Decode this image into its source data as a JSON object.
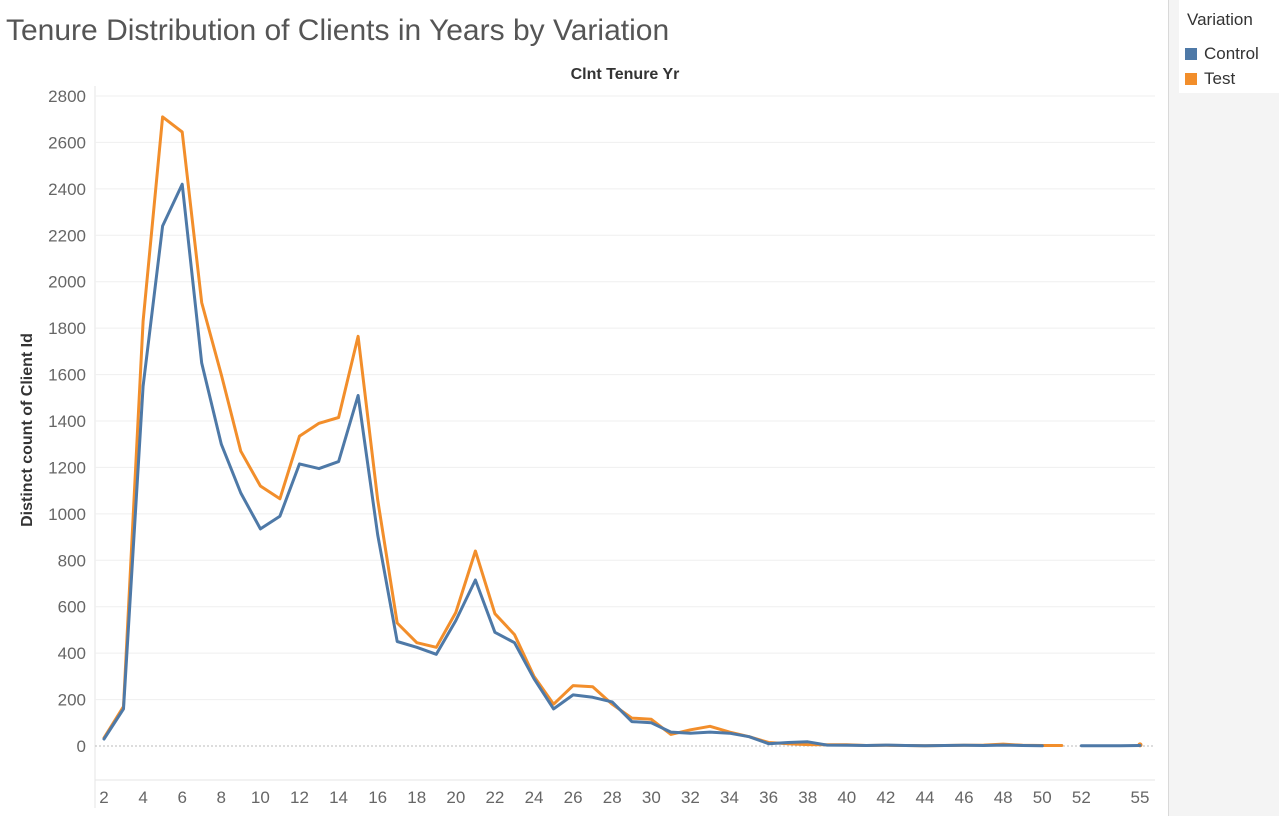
{
  "title": "Tenure Distribution of Clients in Years by Variation",
  "legend": {
    "title": "Variation",
    "items": [
      {
        "label": "Control",
        "color": "#4e79a7"
      },
      {
        "label": "Test",
        "color": "#f28e2b"
      }
    ]
  },
  "chart_data": {
    "type": "line",
    "title": "Tenure Distribution of Clients in Years by Variation",
    "xlabel": "Clnt Tenure Yr",
    "ylabel": "Distinct count of Client Id",
    "xlim": [
      2,
      55
    ],
    "ylim": [
      -150,
      2800
    ],
    "y_ticks": [
      0,
      200,
      400,
      600,
      800,
      1000,
      1200,
      1400,
      1600,
      1800,
      2000,
      2200,
      2400,
      2600,
      2800
    ],
    "x_ticks": [
      2,
      4,
      6,
      8,
      10,
      12,
      14,
      16,
      18,
      20,
      22,
      24,
      26,
      28,
      30,
      32,
      34,
      36,
      38,
      40,
      42,
      44,
      46,
      48,
      50,
      52,
      55
    ],
    "grid": "horizontal",
    "legend_position": "right",
    "series": [
      {
        "name": "Control",
        "color": "#4e79a7",
        "points": [
          [
            2,
            30
          ],
          [
            3,
            160
          ],
          [
            4,
            1550
          ],
          [
            5,
            2240
          ],
          [
            6,
            2420
          ],
          [
            7,
            1650
          ],
          [
            8,
            1300
          ],
          [
            9,
            1090
          ],
          [
            10,
            935
          ],
          [
            11,
            990
          ],
          [
            12,
            1215
          ],
          [
            13,
            1195
          ],
          [
            14,
            1225
          ],
          [
            15,
            1510
          ],
          [
            16,
            910
          ],
          [
            17,
            450
          ],
          [
            18,
            425
          ],
          [
            19,
            395
          ],
          [
            20,
            540
          ],
          [
            21,
            715
          ],
          [
            22,
            490
          ],
          [
            23,
            445
          ],
          [
            24,
            290
          ],
          [
            25,
            160
          ],
          [
            26,
            220
          ],
          [
            27,
            210
          ],
          [
            28,
            190
          ],
          [
            29,
            105
          ],
          [
            30,
            100
          ],
          [
            31,
            60
          ],
          [
            32,
            55
          ],
          [
            33,
            60
          ],
          [
            34,
            55
          ],
          [
            35,
            40
          ],
          [
            36,
            10
          ],
          [
            37,
            15
          ],
          [
            38,
            18
          ],
          [
            39,
            4
          ],
          [
            40,
            3
          ],
          [
            41,
            2
          ],
          [
            42,
            4
          ],
          [
            43,
            2
          ],
          [
            44,
            1
          ],
          [
            45,
            2
          ],
          [
            46,
            3
          ],
          [
            47,
            2
          ],
          [
            48,
            4
          ],
          [
            49,
            2
          ],
          [
            50,
            1
          ],
          null,
          [
            52,
            1
          ],
          [
            53,
            1
          ],
          [
            54,
            1
          ],
          [
            55,
            2
          ]
        ]
      },
      {
        "name": "Test",
        "color": "#f28e2b",
        "points": [
          [
            2,
            35
          ],
          [
            3,
            170
          ],
          [
            4,
            1830
          ],
          [
            5,
            2710
          ],
          [
            6,
            2645
          ],
          [
            7,
            1910
          ],
          [
            8,
            1600
          ],
          [
            9,
            1270
          ],
          [
            10,
            1120
          ],
          [
            11,
            1065
          ],
          [
            12,
            1335
          ],
          [
            13,
            1390
          ],
          [
            14,
            1415
          ],
          [
            15,
            1765
          ],
          [
            16,
            1060
          ],
          [
            17,
            530
          ],
          [
            18,
            445
          ],
          [
            19,
            425
          ],
          [
            20,
            575
          ],
          [
            21,
            840
          ],
          [
            22,
            570
          ],
          [
            23,
            480
          ],
          [
            24,
            300
          ],
          [
            25,
            180
          ],
          [
            26,
            260
          ],
          [
            27,
            255
          ],
          [
            28,
            180
          ],
          [
            29,
            120
          ],
          [
            30,
            115
          ],
          [
            31,
            50
          ],
          [
            32,
            70
          ],
          [
            33,
            85
          ],
          [
            34,
            60
          ],
          [
            35,
            40
          ],
          [
            36,
            15
          ],
          [
            37,
            10
          ],
          [
            38,
            6
          ],
          [
            39,
            5
          ],
          [
            40,
            5
          ],
          [
            41,
            2
          ],
          [
            42,
            3
          ],
          [
            43,
            2
          ],
          [
            44,
            1
          ],
          [
            45,
            2
          ],
          [
            46,
            3
          ],
          [
            47,
            4
          ],
          [
            48,
            8
          ],
          [
            49,
            3
          ],
          [
            50,
            2
          ],
          [
            51,
            2
          ],
          null,
          [
            55,
            5
          ]
        ]
      }
    ]
  }
}
